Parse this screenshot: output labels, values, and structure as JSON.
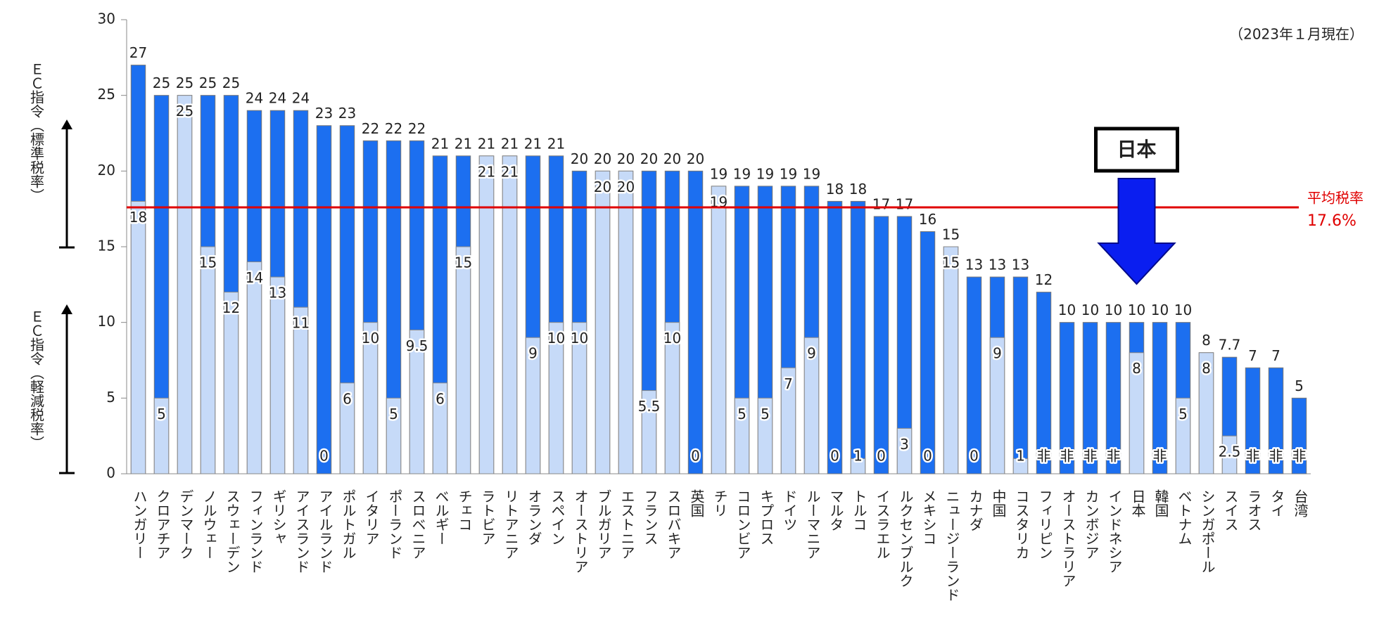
{
  "chart_data": {
    "type": "overlay-bar",
    "annotation": "（2023年１月現在）",
    "y_label_standard": "ＥＣ指令（標準税率）",
    "y_label_reduced": "ＥＣ指令（軽減税率）",
    "categories": [
      "ハンガリー",
      "クロアチア",
      "デンマーク",
      "ノルウェー",
      "スウェーデン",
      "フィンランド",
      "ギリシャ",
      "アイスランド",
      "アイルランド",
      "ポルトガル",
      "イタリア",
      "ポーランド",
      "スロベニア",
      "ベルギー",
      "チェコ",
      "ラトビア",
      "リトアニア",
      "オランダ",
      "スペイン",
      "オーストリア",
      "ブルガリア",
      "エストニア",
      "フランス",
      "スロバキア",
      "英国",
      "チリ",
      "コロンビア",
      "キプロス",
      "ドイツ",
      "ルーマニア",
      "マルタ",
      "トルコ",
      "イスラエル",
      "ルクセンブルク",
      "メキシコ",
      "ニュージーランド",
      "カナダ",
      "中国",
      "コスタリカ",
      "フィリピン",
      "オーストラリア",
      "カンボジア",
      "インドネシア",
      "日本",
      "韓国",
      "ベトナム",
      "シンガポール",
      "スイス",
      "ラオス",
      "タイ",
      "台湾"
    ],
    "series": [
      {
        "color": "#1c6ff0",
        "values": [
          27,
          25,
          25,
          25,
          25,
          24,
          24,
          24,
          23,
          23,
          22,
          22,
          22,
          21,
          21,
          21,
          21,
          21,
          21,
          20,
          20,
          20,
          20,
          20,
          20,
          19,
          19,
          19,
          19,
          19,
          18,
          18,
          17,
          17,
          16,
          15,
          13,
          13,
          13,
          12,
          10,
          10,
          10,
          10,
          10,
          10,
          8,
          7.7,
          7,
          7,
          5
        ]
      },
      {
        "color": "#c6daf8",
        "values": [
          18,
          5,
          25,
          15,
          12,
          14,
          13,
          11,
          0,
          6,
          10,
          5,
          9.5,
          6,
          15,
          21,
          21,
          9,
          10,
          10,
          20,
          20,
          5.5,
          10,
          0,
          19,
          5,
          5,
          7,
          9,
          0,
          1,
          0,
          3,
          0,
          15,
          0,
          9,
          1,
          null,
          null,
          null,
          null,
          8,
          null,
          5,
          8,
          2.5,
          null,
          null,
          null
        ],
        "value_labels": [
          "18",
          "5",
          "25",
          "15",
          "12",
          "14",
          "13",
          "11",
          "0",
          "6",
          "10",
          "5",
          "9.5",
          "6",
          "15",
          "21",
          "21",
          "9",
          "10",
          "10",
          "20",
          "20",
          "5.5",
          "10",
          "0",
          "19",
          "5",
          "5",
          "7",
          "9",
          "0",
          "1",
          "0",
          "3",
          "0",
          "15",
          "0",
          "9",
          "1",
          "非",
          "非",
          "非",
          "非",
          "8",
          "非",
          "5",
          "8",
          "2.5",
          "非",
          "非",
          "非"
        ]
      }
    ],
    "ylim": [
      0,
      30
    ],
    "yticks": [
      0,
      5,
      10,
      15,
      20,
      25,
      30
    ],
    "average": {
      "label": "平均税率",
      "value": 17.6,
      "value_label": "17.6%",
      "color": "#e00000"
    },
    "highlight": {
      "label": "日本",
      "category": 43
    }
  }
}
